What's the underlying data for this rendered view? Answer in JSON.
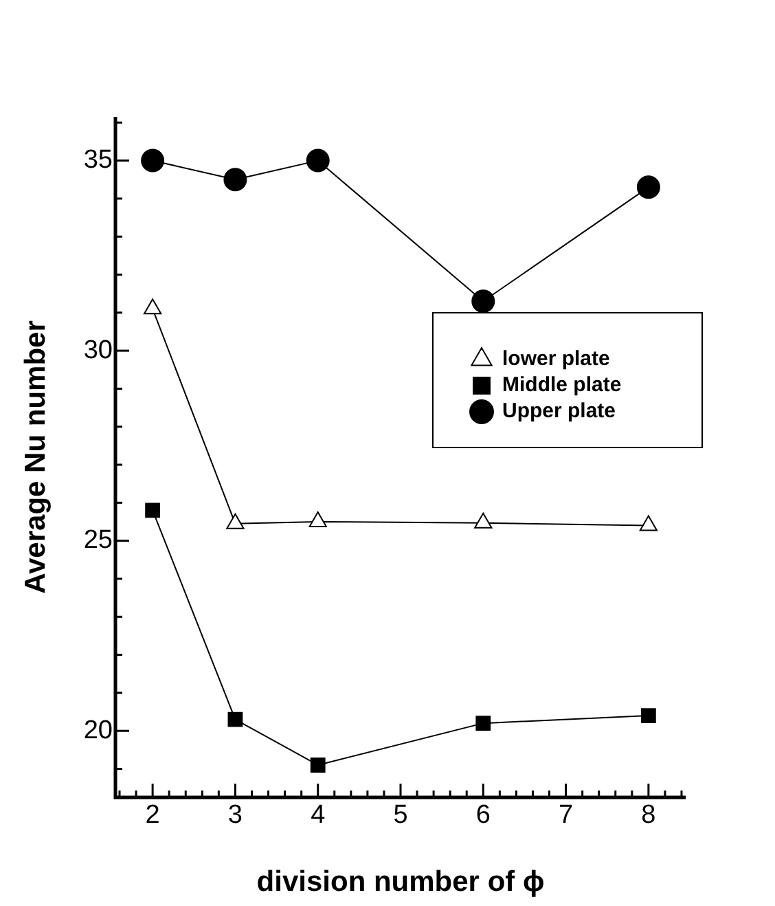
{
  "chart_data": {
    "type": "line",
    "xlabel": "division number of ϕ",
    "ylabel": "Average Nu number",
    "x": [
      2,
      3,
      4,
      6,
      8
    ],
    "series": [
      {
        "name": "lower plate",
        "color": "#000000",
        "marker": "triangle",
        "values": [
          31.1,
          25.45,
          25.5,
          25.47,
          25.4
        ]
      },
      {
        "name": "Middle plate",
        "color": "#000000",
        "marker": "square",
        "values": [
          25.8,
          20.3,
          19.1,
          20.2,
          20.4
        ]
      },
      {
        "name": "Upper plate",
        "color": "#000000",
        "marker": "circle",
        "values": [
          35.0,
          34.5,
          35.0,
          31.3,
          34.3
        ]
      }
    ],
    "xlim": [
      1.55,
      8.45
    ],
    "xticks": [
      {
        "value": 1.6,
        "label": null
      },
      {
        "value": 1.8,
        "label": null
      },
      2,
      {
        "value": 2.2,
        "label": null
      },
      {
        "value": 2.4,
        "label": null
      },
      {
        "value": 2.6,
        "label": null
      },
      {
        "value": 2.8,
        "label": null
      },
      3,
      {
        "value": 3.2,
        "label": null
      },
      {
        "value": 3.4,
        "label": null
      },
      {
        "value": 3.6,
        "label": null
      },
      {
        "value": 3.8,
        "label": null
      },
      4,
      {
        "value": 4.2,
        "label": null
      },
      {
        "value": 4.4,
        "label": null
      },
      {
        "value": 4.6,
        "label": null
      },
      {
        "value": 4.8,
        "label": null
      },
      5,
      {
        "value": 5.2,
        "label": null
      },
      {
        "value": 5.4,
        "label": null
      },
      {
        "value": 5.6,
        "label": null
      },
      {
        "value": 5.8,
        "label": null
      },
      6,
      {
        "value": 6.2,
        "label": null
      },
      {
        "value": 6.4,
        "label": null
      },
      {
        "value": 6.6,
        "label": null
      },
      {
        "value": 6.8,
        "label": null
      },
      7,
      {
        "value": 7.2,
        "label": null
      },
      {
        "value": 7.4,
        "label": null
      },
      {
        "value": 7.6,
        "label": null
      },
      {
        "value": 7.8,
        "label": null
      },
      8,
      {
        "value": 8.2,
        "label": null
      },
      {
        "value": 8.4,
        "label": null
      }
    ],
    "ylim": [
      18.25,
      36.15
    ],
    "yticks": [
      {
        "value": 19,
        "label": null
      },
      20,
      {
        "value": 21,
        "label": null
      },
      {
        "value": 22,
        "label": null
      },
      {
        "value": 23,
        "label": null
      },
      {
        "value": 24,
        "label": null
      },
      25,
      {
        "value": 26,
        "label": null
      },
      {
        "value": 27,
        "label": null
      },
      {
        "value": 28,
        "label": null
      },
      {
        "value": 29,
        "label": null
      },
      30,
      {
        "value": 31,
        "label": null
      },
      {
        "value": 32,
        "label": null
      },
      {
        "value": 33,
        "label": null
      },
      {
        "value": 34,
        "label": null
      },
      35,
      {
        "value": 36,
        "label": null
      }
    ],
    "grid": false,
    "legend": "right",
    "line_style": "solid"
  }
}
